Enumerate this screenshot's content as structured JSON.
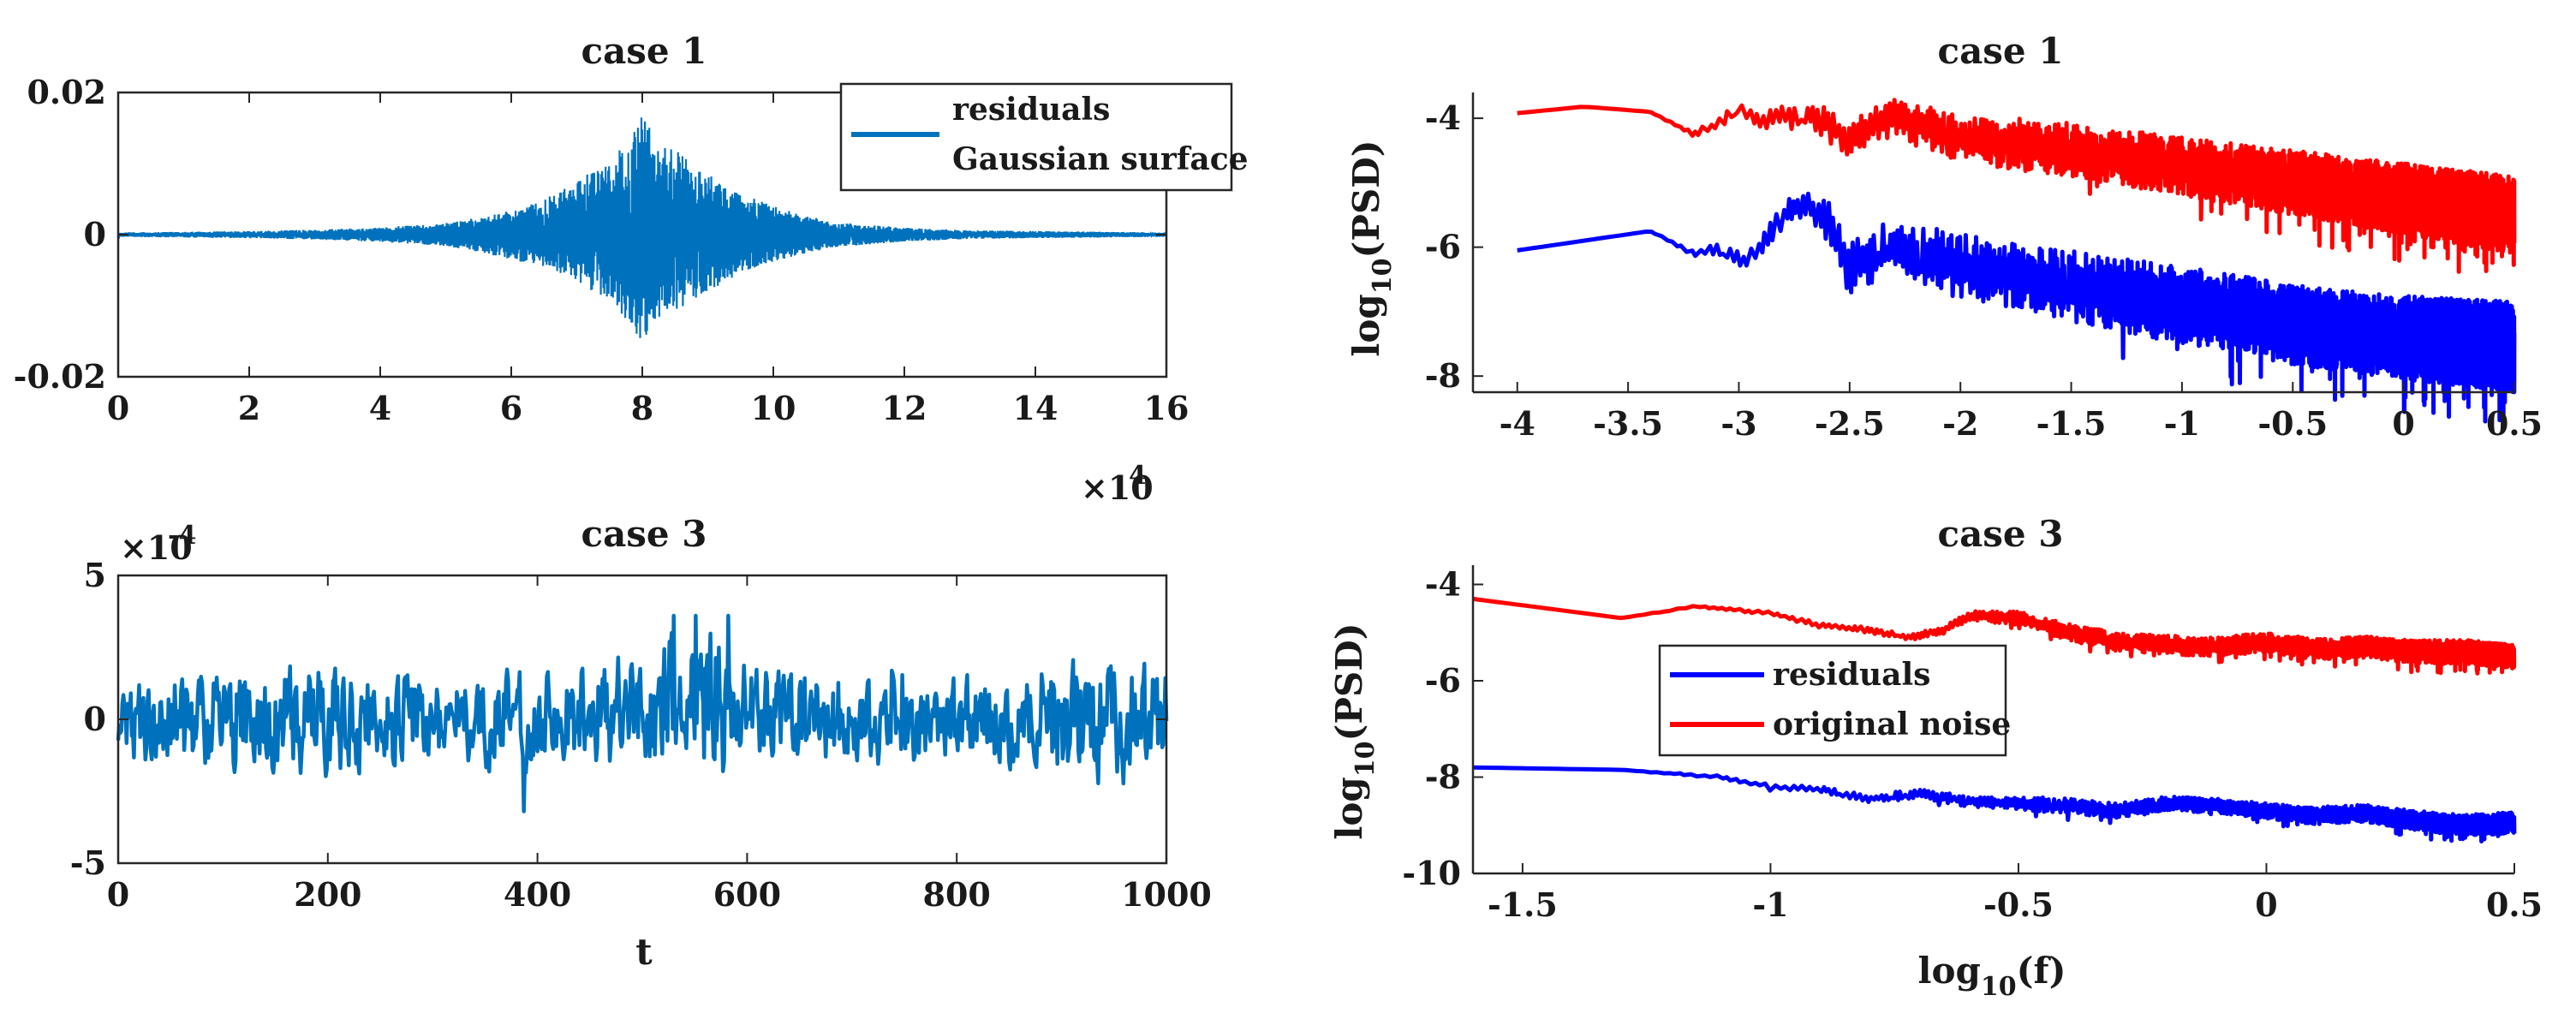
{
  "figure": {
    "panel_a": {
      "title": "case 1",
      "x_exponent_text": "×10",
      "x_exponent_sup": "4",
      "legend": [
        "residuals",
        "Gaussian surface"
      ]
    },
    "panel_b": {
      "title": "case 3",
      "y_exponent_text": "×10",
      "y_exponent_sup": "-4",
      "xlabel": "t"
    },
    "panel_c": {
      "title": "case 1",
      "ylabel_main": "log",
      "ylabel_sub": "10",
      "ylabel_rest": "(PSD)"
    },
    "panel_d": {
      "title": "case 3",
      "ylabel_main": "log",
      "ylabel_sub": "10",
      "ylabel_rest": "(PSD)",
      "xlabel_main": "log",
      "xlabel_sub": "10",
      "xlabel_rest": "(f)",
      "legend": [
        "residuals",
        "original noise"
      ]
    }
  },
  "colors": {
    "matlab_blue": "#0072BD",
    "blue": "#0000FF",
    "red": "#FF0000"
  },
  "chart_data": [
    {
      "id": "panel_a",
      "type": "line",
      "title": "case 1",
      "xlabel": "",
      "ylabel": "",
      "xlim": [
        0,
        160000
      ],
      "ylim": [
        -0.02,
        0.02
      ],
      "x_ticks": [
        0,
        20000,
        40000,
        60000,
        80000,
        100000,
        120000,
        140000,
        160000
      ],
      "x_tick_labels": [
        "0",
        "2",
        "4",
        "6",
        "8",
        "10",
        "12",
        "14",
        "16"
      ],
      "x_multiplier": "×10^4",
      "y_ticks": [
        -0.02,
        0,
        0.02
      ],
      "y_tick_labels": [
        "-0.02",
        "0",
        "0.02"
      ],
      "legend": [
        "residuals",
        "Gaussian surface"
      ],
      "series": [
        {
          "name": "residuals",
          "color": "#0072BD",
          "kind": "noise_envelope",
          "x": [
            0,
            10000,
            20000,
            30000,
            40000,
            50000,
            55000,
            60000,
            65000,
            70000,
            75000,
            78000,
            80000,
            82000,
            85000,
            90000,
            95000,
            100000,
            105000,
            110000,
            120000,
            130000,
            140000,
            150000,
            160000
          ],
          "upper": [
            0.0003,
            0.0004,
            0.0005,
            0.0007,
            0.001,
            0.0017,
            0.0024,
            0.0035,
            0.005,
            0.0075,
            0.0105,
            0.0135,
            0.0175,
            0.0135,
            0.012,
            0.0085,
            0.0058,
            0.004,
            0.0026,
            0.0017,
            0.001,
            0.0006,
            0.0005,
            0.0004,
            0.0003
          ],
          "lower": [
            -0.0003,
            -0.0004,
            -0.0005,
            -0.0007,
            -0.001,
            -0.0017,
            -0.0024,
            -0.0035,
            -0.0045,
            -0.0065,
            -0.0095,
            -0.0125,
            -0.0155,
            -0.012,
            -0.011,
            -0.008,
            -0.0055,
            -0.0038,
            -0.0026,
            -0.0017,
            -0.001,
            -0.0006,
            -0.0005,
            -0.0004,
            -0.0003
          ]
        },
        {
          "name": "Gaussian surface",
          "color": "#0072BD",
          "kind": "line",
          "x": [
            0,
            160000
          ],
          "y": [
            0,
            0
          ]
        }
      ]
    },
    {
      "id": "panel_b",
      "type": "line",
      "title": "case 3",
      "xlabel": "t",
      "ylabel": "",
      "xlim": [
        0,
        1000
      ],
      "ylim": [
        -5,
        5
      ],
      "y_multiplier": "×10^-4",
      "x_ticks": [
        0,
        200,
        400,
        600,
        800,
        1000
      ],
      "x_tick_labels": [
        "0",
        "200",
        "400",
        "600",
        "800",
        "1000"
      ],
      "y_ticks": [
        -5,
        0,
        5
      ],
      "y_tick_labels": [
        "-5",
        "0",
        "5"
      ],
      "series": [
        {
          "name": "residuals",
          "color": "#0072BD",
          "kind": "noise_band",
          "x": [
            0,
            100,
            200,
            300,
            400,
            500,
            575,
            600,
            700,
            800,
            900,
            1000
          ],
          "mean": [
            -0.2,
            0,
            -0.1,
            0,
            0,
            0.3,
            0.8,
            0.2,
            -0.2,
            0,
            0,
            -0.2
          ],
          "amplitude": [
            1.2,
            1.6,
            1.8,
            1.4,
            1.5,
            1.9,
            2.6,
            1.6,
            1.4,
            1.3,
            1.9,
            1.8
          ],
          "max": 3.6,
          "min": -3.3
        }
      ]
    },
    {
      "id": "panel_c",
      "type": "line",
      "title": "case 1",
      "xlabel": "",
      "ylabel": "log10(PSD)",
      "xlim": [
        -4.2,
        0.5
      ],
      "ylim": [
        -8.25,
        -3.6
      ],
      "x_ticks": [
        -4,
        -3.5,
        -3,
        -2.5,
        -2,
        -1.5,
        -1,
        -0.5,
        0,
        0.5
      ],
      "x_tick_labels": [
        "-4",
        "-3.5",
        "-3",
        "-2.5",
        "-2",
        "-1.5",
        "-1",
        "-0.5",
        "0",
        "0.5"
      ],
      "y_ticks": [
        -8,
        -6,
        -4
      ],
      "y_tick_labels": [
        "-8",
        "-6",
        "-4"
      ],
      "series": [
        {
          "name": "original noise",
          "color": "#FF0000",
          "kind": "psd",
          "x": [
            -4,
            -3.7,
            -3.4,
            -3.2,
            -3.1,
            -3.0,
            -2.9,
            -2.7,
            -2.5,
            -2.3,
            -2.0,
            -1.5,
            -1.0,
            -0.5,
            0,
            0.5
          ],
          "y": [
            -3.92,
            -3.82,
            -3.9,
            -4.25,
            -4.1,
            -3.85,
            -4.05,
            -3.9,
            -4.3,
            -4.0,
            -4.3,
            -4.5,
            -4.75,
            -5.0,
            -5.25,
            -5.5
          ],
          "amplitude": [
            0.0,
            0.0,
            0.0,
            0.05,
            0.1,
            0.12,
            0.15,
            0.25,
            0.3,
            0.3,
            0.38,
            0.42,
            0.45,
            0.5,
            0.55,
            0.6
          ]
        },
        {
          "name": "residuals",
          "color": "#0000FF",
          "kind": "psd",
          "x": [
            -4,
            -3.7,
            -3.4,
            -3.2,
            -3.1,
            -2.95,
            -2.8,
            -2.7,
            -2.6,
            -2.5,
            -2.3,
            -2.0,
            -1.5,
            -1.0,
            -0.5,
            0,
            0.5
          ],
          "y": [
            -6.05,
            -5.9,
            -5.75,
            -6.1,
            -6.05,
            -6.2,
            -5.5,
            -5.3,
            -5.6,
            -6.3,
            -6.0,
            -6.3,
            -6.6,
            -6.9,
            -7.2,
            -7.4,
            -7.55
          ],
          "amplitude": [
            0.0,
            0.0,
            0.0,
            0.05,
            0.1,
            0.15,
            0.2,
            0.2,
            0.35,
            0.45,
            0.45,
            0.5,
            0.55,
            0.6,
            0.62,
            0.65,
            0.7
          ]
        }
      ]
    },
    {
      "id": "panel_d",
      "type": "line",
      "title": "case 3",
      "xlabel": "log10(f)",
      "ylabel": "log10(PSD)",
      "xlim": [
        -1.6,
        0.5
      ],
      "ylim": [
        -10,
        -3.6
      ],
      "x_ticks": [
        -1.5,
        -1,
        -0.5,
        0,
        0.5
      ],
      "x_tick_labels": [
        "-1.5",
        "-1",
        "-0.5",
        "0",
        "0.5"
      ],
      "y_ticks": [
        -10,
        -8,
        -6,
        -4
      ],
      "y_tick_labels": [
        "-10",
        "-8",
        "-6",
        "-4"
      ],
      "legend": [
        "residuals",
        "original noise"
      ],
      "series": [
        {
          "name": "residuals",
          "color": "#0000FF",
          "kind": "psd",
          "x": [
            -1.6,
            -1.3,
            -1.1,
            -1.0,
            -0.9,
            -0.8,
            -0.7,
            -0.6,
            -0.5,
            -0.4,
            -0.3,
            -0.2,
            -0.1,
            0,
            0.1,
            0.2,
            0.3,
            0.4,
            0.5
          ],
          "y": [
            -7.8,
            -7.85,
            -8.0,
            -8.2,
            -8.25,
            -8.45,
            -8.35,
            -8.5,
            -8.55,
            -8.6,
            -8.7,
            -8.55,
            -8.6,
            -8.7,
            -8.8,
            -8.75,
            -8.9,
            -9.0,
            -8.95
          ],
          "amplitude": [
            0,
            0,
            0.03,
            0.05,
            0.06,
            0.08,
            0.1,
            0.12,
            0.14,
            0.16,
            0.16,
            0.15,
            0.15,
            0.16,
            0.18,
            0.18,
            0.2,
            0.22,
            0.22
          ]
        },
        {
          "name": "original noise",
          "color": "#FF0000",
          "kind": "psd",
          "x": [
            -1.6,
            -1.3,
            -1.15,
            -1.0,
            -0.9,
            -0.8,
            -0.72,
            -0.65,
            -0.6,
            -0.5,
            -0.4,
            -0.3,
            -0.2,
            -0.1,
            0,
            0.1,
            0.2,
            0.3,
            0.4,
            0.5
          ],
          "y": [
            -4.3,
            -4.7,
            -4.45,
            -4.6,
            -4.85,
            -4.95,
            -5.1,
            -4.95,
            -4.65,
            -4.7,
            -5.0,
            -5.2,
            -5.25,
            -5.3,
            -5.2,
            -5.35,
            -5.3,
            -5.4,
            -5.4,
            -5.5
          ],
          "amplitude": [
            0,
            0,
            0.02,
            0.04,
            0.05,
            0.06,
            0.06,
            0.08,
            0.1,
            0.14,
            0.18,
            0.2,
            0.2,
            0.2,
            0.2,
            0.22,
            0.22,
            0.24,
            0.25,
            0.25
          ]
        }
      ]
    }
  ]
}
